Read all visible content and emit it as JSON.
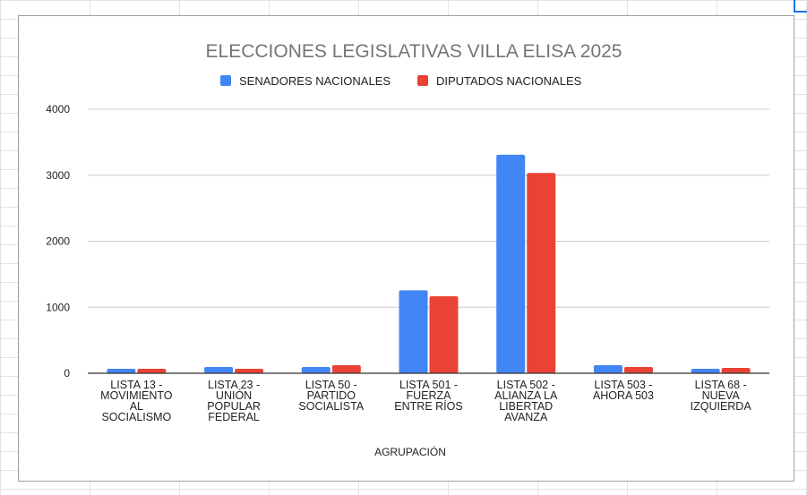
{
  "chart_data": {
    "type": "bar",
    "title": "ELECCIONES LEGISLATIVAS VILLA ELISA 2025",
    "xlabel": "AGRUPACIÓN",
    "ylabel": "",
    "ylim": [
      0,
      4000
    ],
    "yticks": [
      "0",
      "1000",
      "2000",
      "3000",
      "4000"
    ],
    "ytick_values": [
      0,
      1000,
      2000,
      3000,
      4000
    ],
    "grid": true,
    "legend_position": "top",
    "categories": [
      [
        "LISTA 13 -",
        "MOVIMIENTO",
        "AL",
        "SOCIALISMO"
      ],
      [
        "LISTA 23 -",
        "UNIÓN",
        "POPULAR",
        "FEDERAL"
      ],
      [
        "LISTA 50 -",
        "PARTIDO",
        "SOCIALISTA"
      ],
      [
        "LISTA 501 -",
        "FUERZA",
        "ENTRE RÍOS"
      ],
      [
        "LISTA 502 -",
        "ALIANZA LA",
        "LIBERTAD",
        "AVANZA"
      ],
      [
        "LISTA 503 -",
        "AHORA 503"
      ],
      [
        "LISTA 68 -",
        "NUEVA",
        "IZQUIERDA"
      ]
    ],
    "series": [
      {
        "name": "SENADORES NACIONALES",
        "color": "#4285f4",
        "values": [
          68,
          95,
          95,
          1256,
          3310,
          122,
          68
        ]
      },
      {
        "name": "DIPUTADOS NACIONALES",
        "color": "#ea4335",
        "values": [
          68,
          68,
          122,
          1166,
          3034,
          95,
          82
        ]
      }
    ]
  }
}
